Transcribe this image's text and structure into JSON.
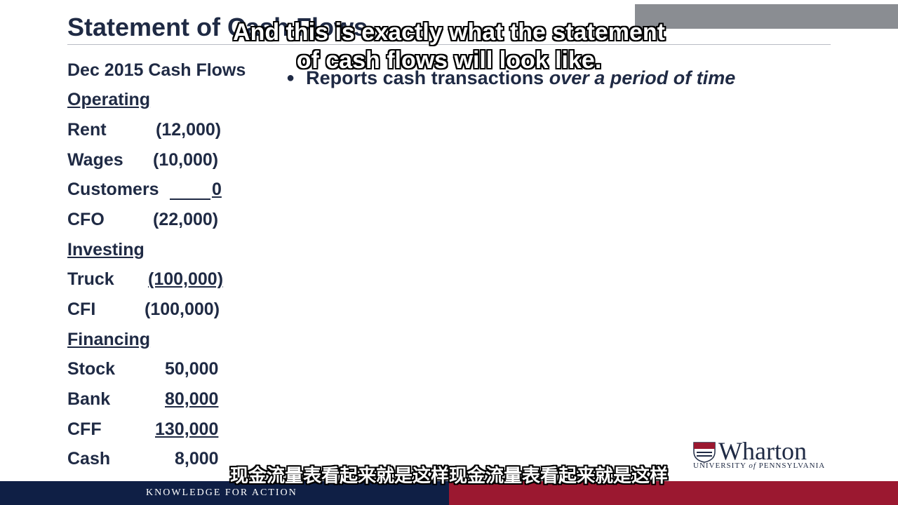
{
  "slide": {
    "title": "Statement of Cash Flows",
    "period_label": "Dec 2015 Cash Flows",
    "bullet": {
      "text": "Reports cash transactions",
      "emphasis": "over a period of time"
    }
  },
  "sections": {
    "operating": "Operating",
    "investing": "Investing",
    "financing": "Financing"
  },
  "rows": {
    "rent": {
      "label": "Rent",
      "value": "(12,000)"
    },
    "wages": {
      "label": "Wages",
      "value": "(10,000)"
    },
    "customers": {
      "label": "Customers",
      "value": "0"
    },
    "cfo": {
      "label": "CFO",
      "value": "(22,000)"
    },
    "truck": {
      "label": "Truck",
      "value": "(100,000)"
    },
    "cfi": {
      "label": "CFI",
      "value": "(100,000)"
    },
    "stock": {
      "label": "Stock",
      "value": "50,000"
    },
    "bank": {
      "label": "Bank",
      "value": "80,000"
    },
    "cff": {
      "label": "CFF",
      "value": "130,000"
    },
    "cash": {
      "label": "Cash",
      "value": "8,000"
    }
  },
  "captions": {
    "english_line1": "And this is exactly what the statement",
    "english_line2": "of cash flows will look like.",
    "chinese": "现金流量表看起来就是这样现金流量表看起来就是这样"
  },
  "branding": {
    "logo_text": "Wharton",
    "university_prefix": "UNIVERSITY",
    "university_of": "of",
    "university_name": "PENNSYLVANIA",
    "tagline": "KNOWLEDGE FOR ACTION",
    "colors": {
      "navy": "#0f1f45",
      "red": "#9b1830",
      "text": "#1f2a44"
    }
  }
}
